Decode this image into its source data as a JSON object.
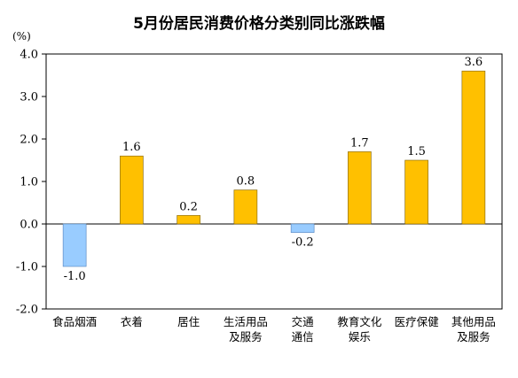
{
  "chart_data": {
    "type": "bar",
    "title": "5月份居民消费价格分类别同比涨跌幅",
    "unit": "(%)",
    "categories": [
      [
        "食品烟酒"
      ],
      [
        "衣着"
      ],
      [
        "居住"
      ],
      [
        "生活用品",
        "及服务"
      ],
      [
        "交通",
        "通信"
      ],
      [
        "教育文化",
        "娱乐"
      ],
      [
        "医疗保健"
      ],
      [
        "其他用品",
        "及服务"
      ]
    ],
    "values": [
      -1.0,
      1.6,
      0.2,
      0.8,
      -0.2,
      1.7,
      1.5,
      3.6
    ],
    "value_labels": [
      "-1.0",
      "1.6",
      "0.2",
      "0.8",
      "-0.2",
      "1.7",
      "1.5",
      "3.6"
    ],
    "yticks": [
      "4.0",
      "3.0",
      "2.0",
      "1.0",
      "0.0",
      "-1.0",
      "-2.0"
    ],
    "ylim": [
      -2.0,
      4.0
    ],
    "xlabel": "",
    "ylabel": "",
    "grid": false,
    "colors": {
      "positive": "#FFC000",
      "negative": "#99CCFF",
      "bar_stroke": "#7F6000",
      "neg_stroke": "#4F81BD",
      "axis": "#000000"
    }
  }
}
